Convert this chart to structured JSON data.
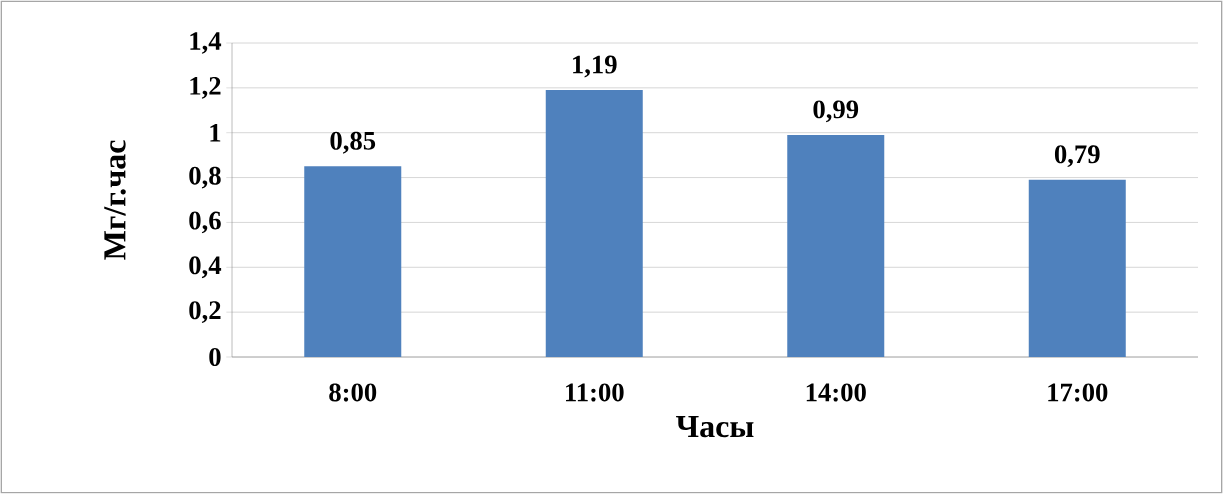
{
  "chart_data": {
    "type": "bar",
    "xlabel": "Часы",
    "ylabel": "Мг/г.час",
    "categories": [
      "8:00",
      "11:00",
      "14:00",
      "17:00"
    ],
    "values": [
      0.85,
      1.19,
      0.99,
      0.79
    ],
    "value_labels": [
      "0,85",
      "1,19",
      "0,99",
      "0,79"
    ],
    "color": "#4f81bd",
    "ylim": [
      0,
      1.4
    ],
    "yticks": [
      0,
      {
        "value": 0.2,
        "label": "0,2"
      },
      {
        "value": 0.4,
        "label": "0,4"
      },
      {
        "value": 0.6,
        "label": "0,6"
      },
      {
        "value": 0.8,
        "label": "0,8"
      },
      1,
      {
        "value": 1.2,
        "label": "1,2"
      },
      {
        "value": 1.4,
        "label": "1,4"
      }
    ],
    "grid": "y"
  }
}
